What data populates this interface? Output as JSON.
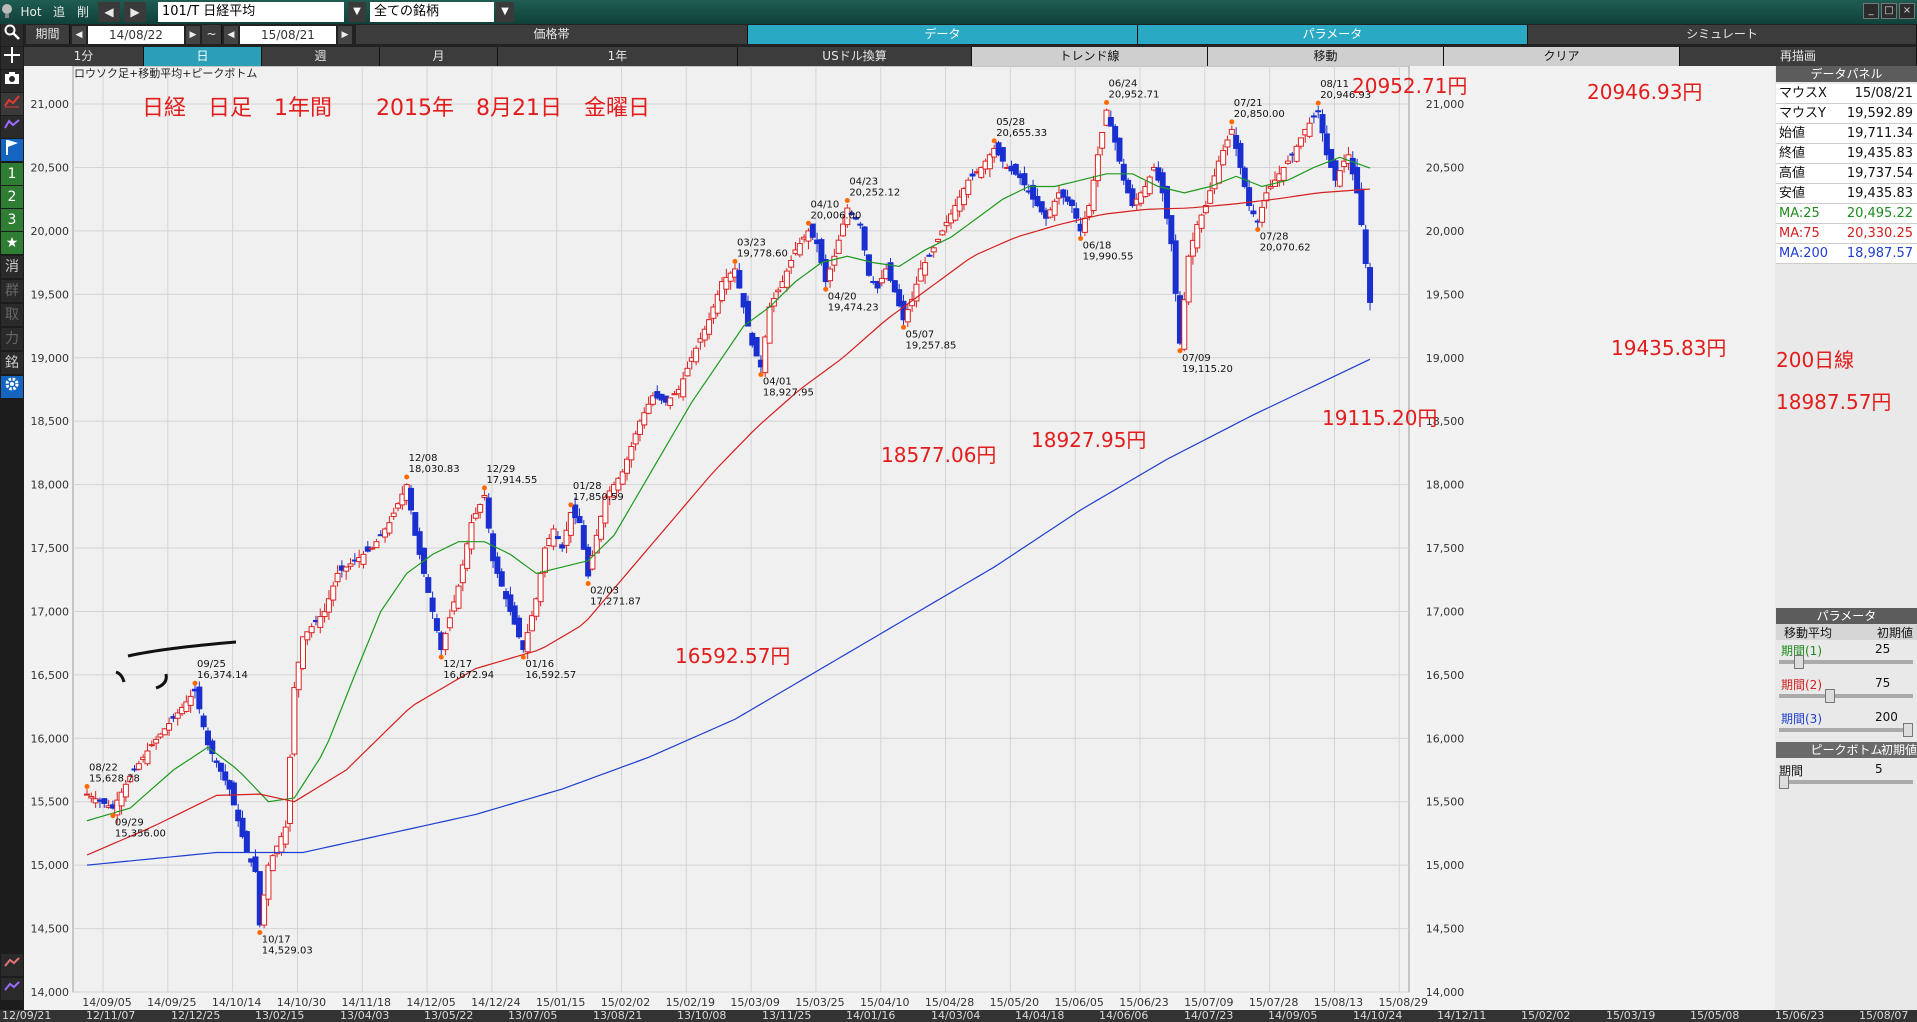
{
  "toolbar": {
    "hot": "Hot",
    "add": "追",
    "del": "削",
    "symbol": "101/T 日経平均",
    "universe": "全ての銘柄"
  },
  "row2": {
    "period_label": "期間",
    "date_from": "14/08/22",
    "tilde": "~",
    "date_to": "15/08/21",
    "tabs": [
      "価格帯",
      "データ",
      "パラメータ",
      "シミュレート"
    ]
  },
  "row3": {
    "buttons": [
      "1分",
      "日",
      "週",
      "月",
      "1年",
      "USドル換算",
      "トレンド線",
      "移動",
      "クリア",
      "再描画"
    ]
  },
  "sidebar": {
    "items": [
      "1",
      "2",
      "3",
      "★",
      "消",
      "群",
      "取",
      "力",
      "銘"
    ]
  },
  "chart_title": "ロウソク足+移動平均+ピークボトム",
  "annotations": {
    "main": "日経　日足　1年間　　2015年　8月21日　金曜日",
    "a1": "20952.71円",
    "a2": "20946.93円",
    "a3": "19435.83円",
    "a4": "200日線",
    "a5": "18987.57円",
    "a6": "19115.20円",
    "a7": "18927.95円",
    "a8": "18577.06円",
    "a9": "16592.57円"
  },
  "panel": {
    "title": "データパネル",
    "rows": [
      {
        "k": "マウスX",
        "v": "15/08/21",
        "color": "#111111"
      },
      {
        "k": "マウスY",
        "v": "19,592.89",
        "color": "#111111"
      },
      {
        "k": "始値",
        "v": "19,711.34",
        "color": "#111111"
      },
      {
        "k": "終値",
        "v": "19,435.83",
        "color": "#111111"
      },
      {
        "k": "高値",
        "v": "19,737.54",
        "color": "#111111"
      },
      {
        "k": "安値",
        "v": "19,435.83",
        "color": "#111111"
      },
      {
        "k": "MA:25",
        "v": "20,495.22",
        "color": "#1e8c1e"
      },
      {
        "k": "MA:75",
        "v": "20,330.25",
        "color": "#d61f1f"
      },
      {
        "k": "MA:200",
        "v": "18,987.57",
        "color": "#1f3fd0"
      }
    ],
    "param_title": "パラメータ",
    "ma_label": "移動平均",
    "init_label": "初期値",
    "periods": [
      {
        "label": "期間(1)",
        "value": "25",
        "color": "#1e8c1e",
        "level": 0.12
      },
      {
        "label": "期間(2)",
        "value": "75",
        "color": "#d61f1f",
        "level": 0.37
      },
      {
        "label": "期間(3)",
        "value": "200",
        "color": "#1f3fd0",
        "level": 1.0
      }
    ],
    "pb_title": "ピークボトム",
    "pb_init": "初期値",
    "pb_period_label": "期間",
    "pb_period_value": "5",
    "pb_level": 0.0
  },
  "bottom_labels": [
    "12/09/21",
    "12/11/07",
    "12/12/25",
    "13/02/15",
    "13/04/03",
    "13/05/22",
    "13/07/05",
    "13/08/21",
    "13/10/08",
    "13/11/25",
    "14/01/16",
    "14/03/04",
    "14/04/18",
    "14/06/06",
    "14/07/23",
    "14/09/05",
    "14/10/24",
    "14/12/11",
    "15/02/02",
    "15/03/19",
    "15/05/08",
    "15/06/23",
    "15/08/07"
  ],
  "chart_data": {
    "type": "candlestick",
    "ylim": [
      14000,
      21300
    ],
    "yticks": [
      14000,
      14500,
      15000,
      15500,
      16000,
      16500,
      17000,
      17500,
      18000,
      18500,
      19000,
      19500,
      20000,
      20500,
      21000
    ],
    "ytick_labels": [
      "14,000",
      "14,500",
      "15,000",
      "15,500",
      "16,000",
      "16,500",
      "17,000",
      "17,500",
      "18,000",
      "18,500",
      "19,000",
      "19,500",
      "20,000",
      "20,500",
      "21,000"
    ],
    "xtick_labels": [
      "14/09/05",
      "14/09/25",
      "14/10/14",
      "14/10/30",
      "14/11/18",
      "14/12/05",
      "14/12/24",
      "15/01/15",
      "15/02/02",
      "15/02/19",
      "15/03/09",
      "15/03/25",
      "15/04/10",
      "15/04/28",
      "15/05/20",
      "15/06/05",
      "15/06/23",
      "15/07/09",
      "15/07/28",
      "15/08/13",
      "15/08/29"
    ],
    "close_path": [
      [
        0,
        15560
      ],
      [
        6,
        15450
      ],
      [
        10,
        15700
      ],
      [
        15,
        15950
      ],
      [
        21,
        16200
      ],
      [
        25,
        16374
      ],
      [
        28,
        15950
      ],
      [
        33,
        15600
      ],
      [
        37,
        15100
      ],
      [
        39,
        14950
      ],
      [
        40,
        14529
      ],
      [
        42,
        15000
      ],
      [
        46,
        15300
      ],
      [
        48,
        16400
      ],
      [
        50,
        16800
      ],
      [
        55,
        17000
      ],
      [
        58,
        17300
      ],
      [
        62,
        17400
      ],
      [
        66,
        17500
      ],
      [
        70,
        17700
      ],
      [
        74,
        18000
      ],
      [
        76,
        17600
      ],
      [
        80,
        17000
      ],
      [
        82,
        16700
      ],
      [
        86,
        17200
      ],
      [
        89,
        17700
      ],
      [
        92,
        17914
      ],
      [
        94,
        17400
      ],
      [
        98,
        17000
      ],
      [
        101,
        16700
      ],
      [
        104,
        17100
      ],
      [
        106,
        17500
      ],
      [
        108,
        17650
      ],
      [
        110,
        17500
      ],
      [
        112,
        17780
      ],
      [
        114,
        17700
      ],
      [
        116,
        17280
      ],
      [
        118,
        17600
      ],
      [
        120,
        17900
      ],
      [
        124,
        18100
      ],
      [
        128,
        18500
      ],
      [
        131,
        18700
      ],
      [
        134,
        18650
      ],
      [
        137,
        18750
      ],
      [
        140,
        19000
      ],
      [
        144,
        19300
      ],
      [
        147,
        19600
      ],
      [
        150,
        19700
      ],
      [
        152,
        19400
      ],
      [
        154,
        19100
      ],
      [
        156,
        18928
      ],
      [
        158,
        19400
      ],
      [
        161,
        19600
      ],
      [
        164,
        19850
      ],
      [
        167,
        20000
      ],
      [
        169,
        19900
      ],
      [
        171,
        19600
      ],
      [
        173,
        19800
      ],
      [
        176,
        20180
      ],
      [
        179,
        20050
      ],
      [
        181,
        19650
      ],
      [
        183,
        19550
      ],
      [
        185,
        19700
      ],
      [
        187,
        19520
      ],
      [
        189,
        19300
      ],
      [
        191,
        19460
      ],
      [
        193,
        19700
      ],
      [
        195,
        19800
      ],
      [
        198,
        20000
      ],
      [
        201,
        20200
      ],
      [
        204,
        20400
      ],
      [
        207,
        20500
      ],
      [
        210,
        20650
      ],
      [
        213,
        20500
      ],
      [
        216,
        20420
      ],
      [
        219,
        20250
      ],
      [
        222,
        20100
      ],
      [
        225,
        20300
      ],
      [
        228,
        20200
      ],
      [
        230,
        20000
      ],
      [
        232,
        20200
      ],
      [
        234,
        20600
      ],
      [
        236,
        20952
      ],
      [
        238,
        20700
      ],
      [
        240,
        20400
      ],
      [
        242,
        20200
      ],
      [
        245,
        20350
      ],
      [
        247,
        20500
      ],
      [
        249,
        20300
      ],
      [
        251,
        19900
      ],
      [
        253,
        19115
      ],
      [
        255,
        19800
      ],
      [
        257,
        20050
      ],
      [
        259,
        20200
      ],
      [
        262,
        20550
      ],
      [
        265,
        20800
      ],
      [
        267,
        20500
      ],
      [
        269,
        20200
      ],
      [
        271,
        20071
      ],
      [
        273,
        20300
      ],
      [
        276,
        20450
      ],
      [
        279,
        20600
      ],
      [
        282,
        20800
      ],
      [
        285,
        20947
      ],
      [
        287,
        20600
      ],
      [
        289,
        20400
      ],
      [
        291,
        20550
      ],
      [
        292,
        20600
      ],
      [
        294,
        20300
      ],
      [
        295,
        20050
      ],
      [
        297,
        19436
      ]
    ],
    "ma25": [
      [
        0,
        15350
      ],
      [
        10,
        15450
      ],
      [
        20,
        15750
      ],
      [
        28,
        15930
      ],
      [
        35,
        15750
      ],
      [
        42,
        15500
      ],
      [
        48,
        15530
      ],
      [
        55,
        15900
      ],
      [
        62,
        16500
      ],
      [
        68,
        17000
      ],
      [
        74,
        17300
      ],
      [
        80,
        17450
      ],
      [
        86,
        17550
      ],
      [
        92,
        17550
      ],
      [
        98,
        17450
      ],
      [
        104,
        17300
      ],
      [
        110,
        17350
      ],
      [
        116,
        17400
      ],
      [
        122,
        17600
      ],
      [
        128,
        17950
      ],
      [
        134,
        18300
      ],
      [
        140,
        18650
      ],
      [
        146,
        18950
      ],
      [
        152,
        19250
      ],
      [
        158,
        19400
      ],
      [
        164,
        19600
      ],
      [
        170,
        19750
      ],
      [
        176,
        19800
      ],
      [
        182,
        19750
      ],
      [
        188,
        19720
      ],
      [
        194,
        19850
      ],
      [
        200,
        19950
      ],
      [
        206,
        20100
      ],
      [
        212,
        20250
      ],
      [
        218,
        20350
      ],
      [
        224,
        20350
      ],
      [
        230,
        20400
      ],
      [
        236,
        20450
      ],
      [
        242,
        20450
      ],
      [
        248,
        20350
      ],
      [
        254,
        20300
      ],
      [
        260,
        20350
      ],
      [
        266,
        20430
      ],
      [
        272,
        20350
      ],
      [
        278,
        20400
      ],
      [
        284,
        20500
      ],
      [
        290,
        20580
      ],
      [
        297,
        20495
      ]
    ],
    "ma75": [
      [
        0,
        15080
      ],
      [
        15,
        15300
      ],
      [
        30,
        15550
      ],
      [
        40,
        15560
      ],
      [
        48,
        15500
      ],
      [
        60,
        15750
      ],
      [
        75,
        16250
      ],
      [
        90,
        16550
      ],
      [
        105,
        16700
      ],
      [
        115,
        16900
      ],
      [
        125,
        17300
      ],
      [
        135,
        17700
      ],
      [
        145,
        18100
      ],
      [
        155,
        18450
      ],
      [
        165,
        18750
      ],
      [
        175,
        19000
      ],
      [
        185,
        19300
      ],
      [
        195,
        19550
      ],
      [
        205,
        19800
      ],
      [
        215,
        19950
      ],
      [
        225,
        20050
      ],
      [
        235,
        20130
      ],
      [
        245,
        20170
      ],
      [
        255,
        20180
      ],
      [
        265,
        20210
      ],
      [
        275,
        20250
      ],
      [
        285,
        20300
      ],
      [
        297,
        20330
      ]
    ],
    "ma200": [
      [
        0,
        15000
      ],
      [
        30,
        15100
      ],
      [
        50,
        15100
      ],
      [
        70,
        15250
      ],
      [
        90,
        15400
      ],
      [
        110,
        15600
      ],
      [
        130,
        15850
      ],
      [
        150,
        16150
      ],
      [
        170,
        16550
      ],
      [
        190,
        16950
      ],
      [
        210,
        17350
      ],
      [
        230,
        17800
      ],
      [
        250,
        18200
      ],
      [
        270,
        18550
      ],
      [
        297,
        18988
      ]
    ],
    "peaks": [
      {
        "i": 0,
        "date": "08/22",
        "value": "15,628.78",
        "lbl": "above"
      },
      {
        "i": 6,
        "date": "09/29",
        "value": "15,356.00",
        "lbl": "below"
      },
      {
        "i": 25,
        "date": "09/25",
        "value": "16,374.14",
        "lbl": "above"
      },
      {
        "i": 40,
        "date": "10/17",
        "value": "14,529.03",
        "lbl": "below"
      },
      {
        "i": 74,
        "date": "12/08",
        "value": "18,030.83",
        "lbl": "above"
      },
      {
        "i": 82,
        "date": "12/17",
        "value": "16,672.94",
        "lbl": "below"
      },
      {
        "i": 92,
        "date": "12/29",
        "value": "17,914.55",
        "lbl": "above"
      },
      {
        "i": 101,
        "date": "01/16",
        "value": "16,592.57",
        "lbl": "below"
      },
      {
        "i": 112,
        "date": "01/28",
        "value": "17,850.59",
        "lbl": "above"
      },
      {
        "i": 116,
        "date": "02/03",
        "value": "17,271.87",
        "lbl": "below"
      },
      {
        "i": 150,
        "date": "03/23",
        "value": "19,778.60",
        "lbl": "above"
      },
      {
        "i": 156,
        "date": "04/01",
        "value": "18,927.95",
        "lbl": "below"
      },
      {
        "i": 167,
        "date": "04/10",
        "value": "20,006.00",
        "lbl": "above"
      },
      {
        "i": 176,
        "date": "04/23",
        "value": "20,252.12",
        "lbl": "above"
      },
      {
        "i": 171,
        "date": "04/20",
        "value": "19,474.23",
        "lbl": "below"
      },
      {
        "i": 189,
        "date": "05/07",
        "value": "19,257.85",
        "lbl": "below"
      },
      {
        "i": 210,
        "date": "05/28",
        "value": "20,655.33",
        "lbl": "above"
      },
      {
        "i": 236,
        "date": "06/24",
        "value": "20,952.71",
        "lbl": "above"
      },
      {
        "i": 230,
        "date": "06/18",
        "value": "19,990.55",
        "lbl": "below"
      },
      {
        "i": 253,
        "date": "07/09",
        "value": "19,115.20",
        "lbl": "below"
      },
      {
        "i": 265,
        "date": "07/21",
        "value": "20,850.00",
        "lbl": "above"
      },
      {
        "i": 271,
        "date": "07/28",
        "value": "20,070.62",
        "lbl": "below"
      },
      {
        "i": 285,
        "date": "08/11",
        "value": "20,946.93",
        "lbl": "above"
      }
    ]
  }
}
